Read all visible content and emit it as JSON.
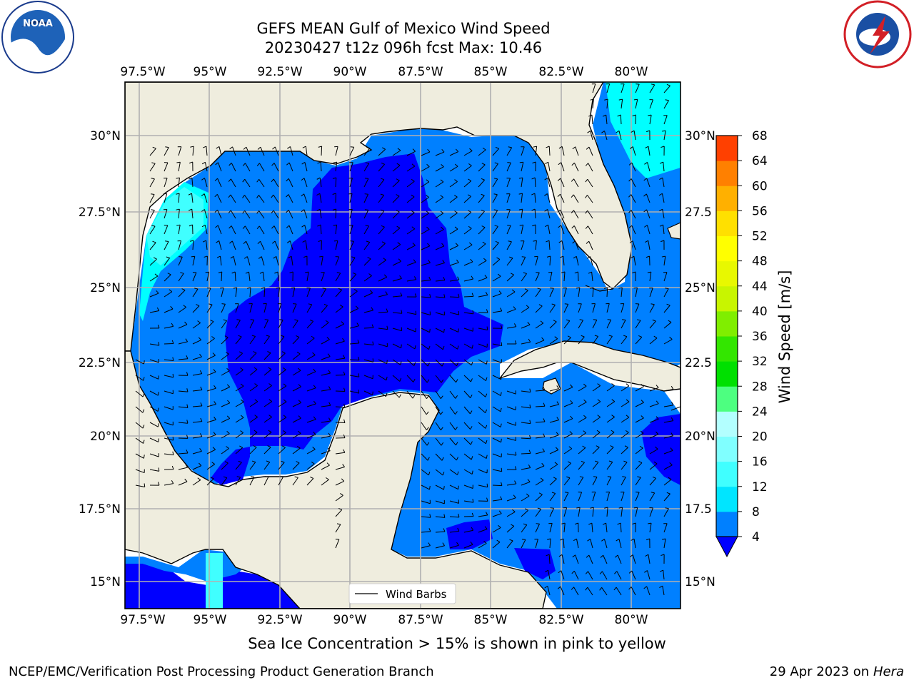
{
  "title": {
    "line1": "GEFS MEAN Gulf of Mexico Wind Speed",
    "line2": "20230427 t12z 096h fcst   Max: 10.46"
  },
  "lon_labels": [
    "97.5°W",
    "95°W",
    "92.5°W",
    "90°W",
    "87.5°W",
    "85°W",
    "82.5°W",
    "80°W"
  ],
  "lat_labels": [
    "30°N",
    "27.5°N",
    "25°N",
    "22.5°N",
    "20°N",
    "17.5°N",
    "15°N"
  ],
  "lat_labels_right": [
    "30°N",
    "27.5",
    "25°N",
    "22.5",
    "20°N",
    "17.5",
    "15°N"
  ],
  "colorbar": {
    "label": "Wind Speed [m/s]",
    "ticks": [
      "4",
      "8",
      "12",
      "16",
      "20",
      "24",
      "28",
      "32",
      "36",
      "40",
      "44",
      "48",
      "52",
      "56",
      "60",
      "64",
      "68"
    ],
    "colors": [
      "#0080ff",
      "#00e5ff",
      "#40ffff",
      "#80ffff",
      "#b3ffff",
      "#4dff80",
      "#00e000",
      "#33e600",
      "#80ee00",
      "#c8f500",
      "#e8f800",
      "#ffff00",
      "#ffe000",
      "#ffb000",
      "#ff8000",
      "#ff4000",
      "#ff0000"
    ],
    "under_color": "#0000ff"
  },
  "legend": {
    "label": "Wind Barbs"
  },
  "ice_note": "Sea Ice Concentration > 15% is shown in pink to yellow",
  "footer": {
    "left": "NCEP/EMC/Verification Post Processing Product Generation Branch",
    "right_date": "29 Apr 2023 on ",
    "right_host": "Hera"
  },
  "logos": {
    "left": "NOAA",
    "right": "NATIONAL WEATHER SERVICE"
  },
  "map_colors": {
    "land": "#efedde",
    "ocean_low": "#0000ff",
    "ocean_mid": "#0080ff",
    "ocean_high": "#00ffff",
    "grid": "#b0b0b0"
  }
}
